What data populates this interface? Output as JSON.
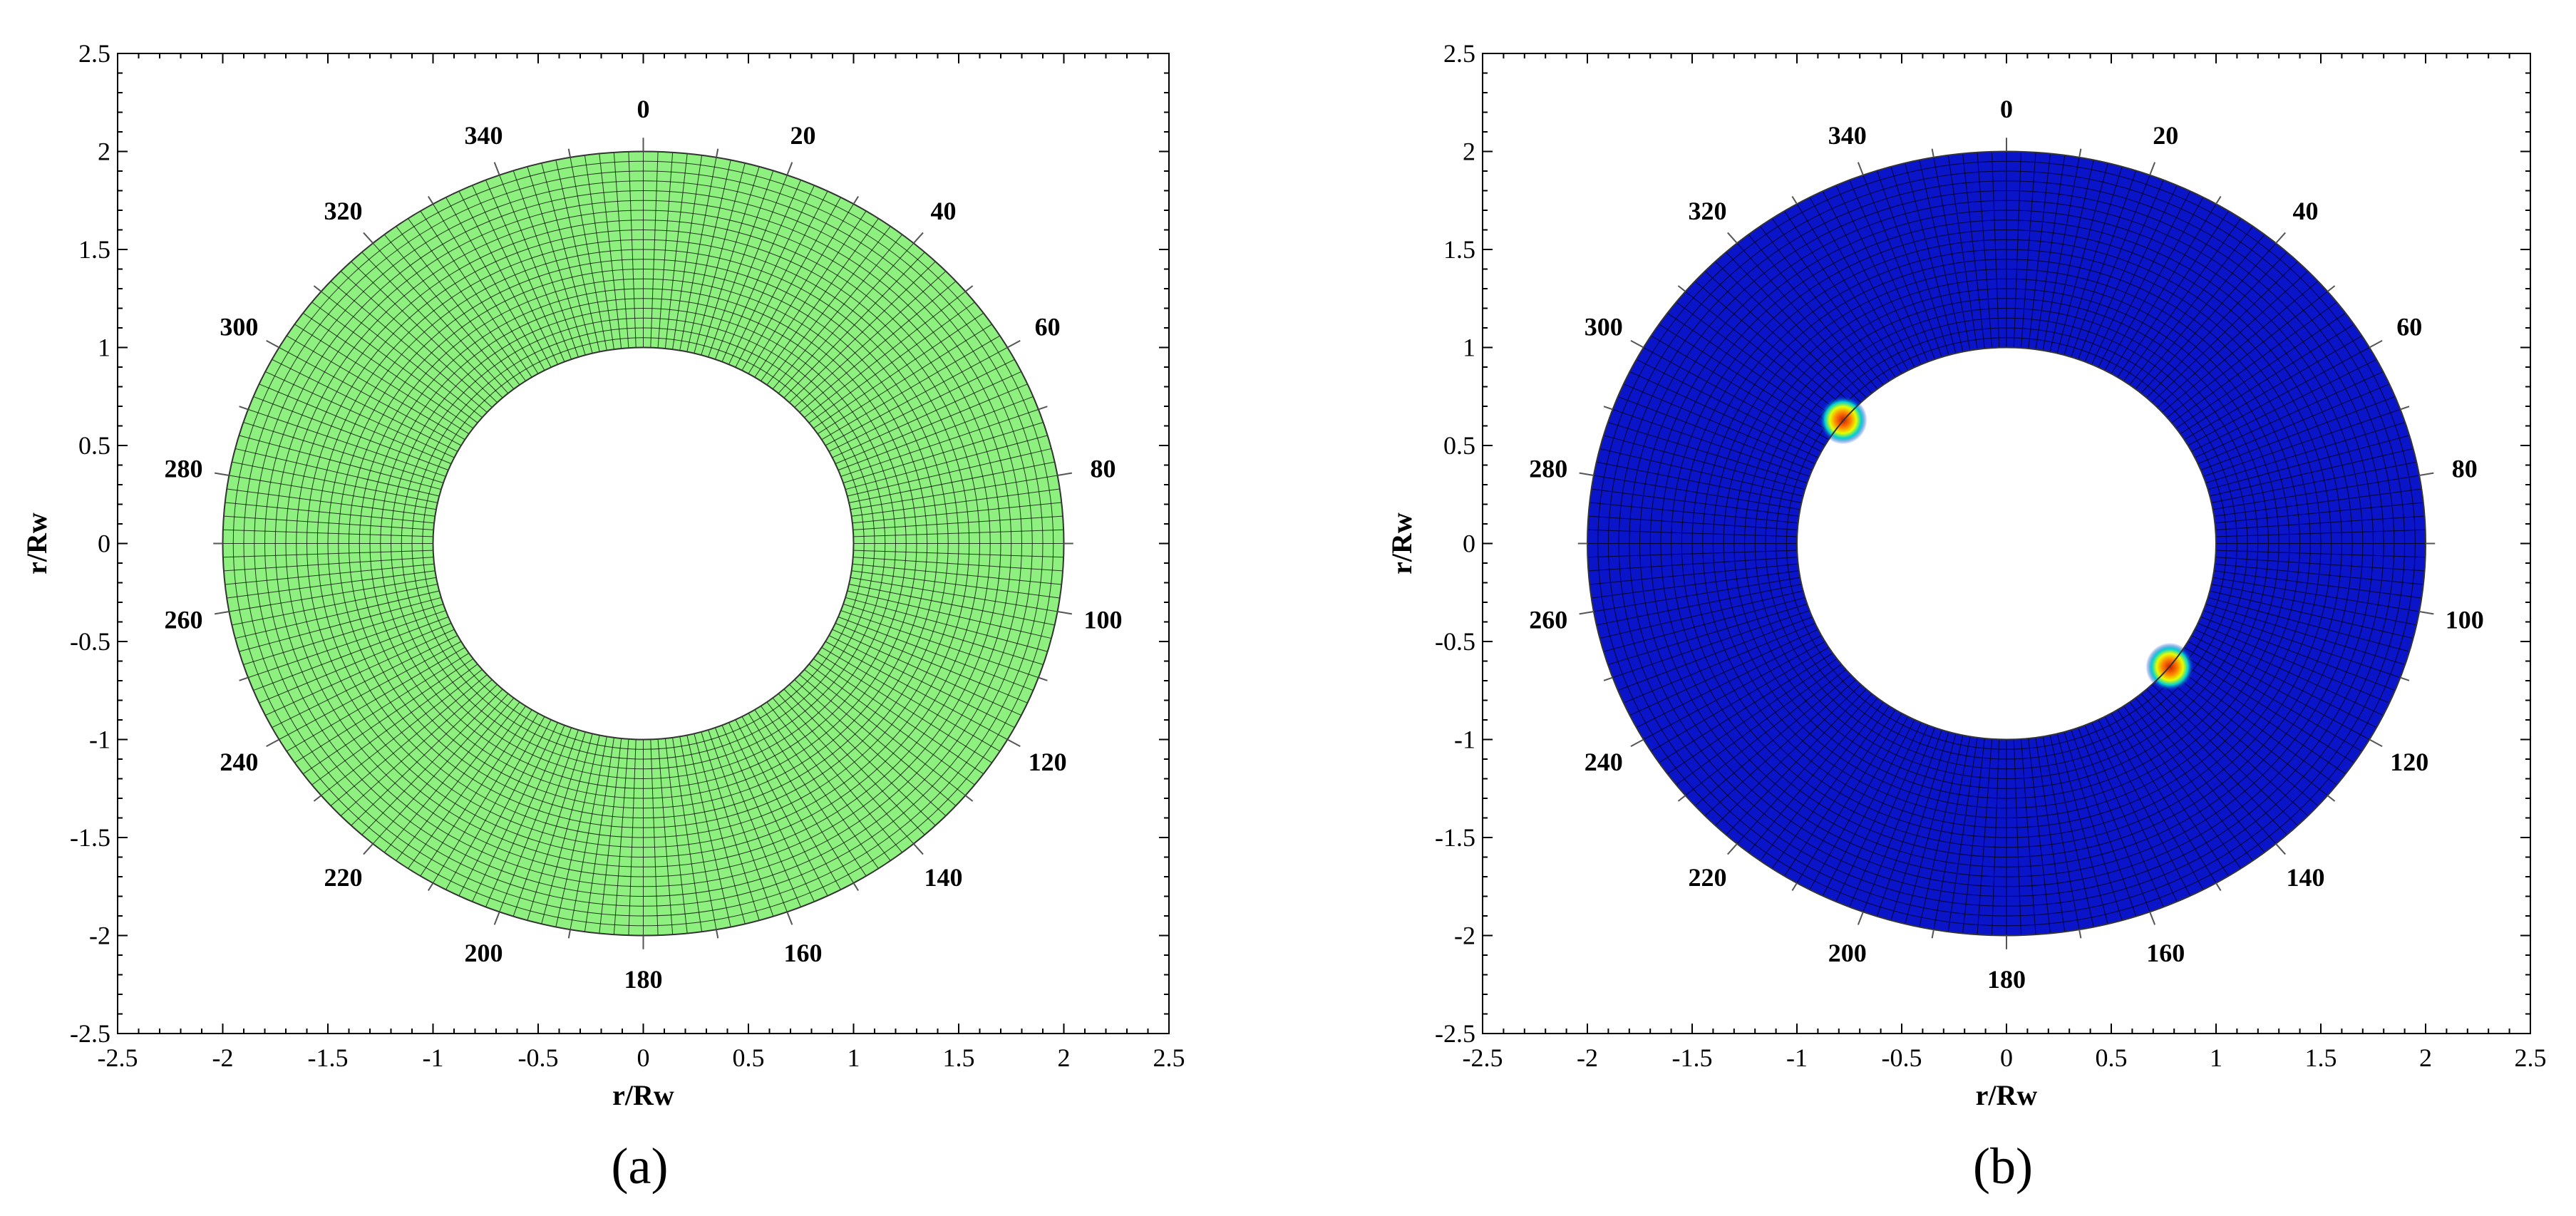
{
  "chart_data": [
    {
      "type": "polar-mesh",
      "panel_label": "(a)",
      "xlabel": "r/Rw",
      "ylabel": "r/Rw",
      "xlim": [
        -2.5,
        2.5
      ],
      "ylim": [
        -2.5,
        2.5
      ],
      "x_ticks": [
        "-2.5",
        "-2",
        "-1.5",
        "-1",
        "-0.5",
        "0",
        "0.5",
        "1",
        "1.5",
        "2",
        "2.5"
      ],
      "y_ticks": [
        "-2.5",
        "-2",
        "-1.5",
        "-1",
        "-0.5",
        "0",
        "0.5",
        "1",
        "1.5",
        "2",
        "2.5"
      ],
      "angle_labels": [
        "0",
        "20",
        "40",
        "60",
        "80",
        "100",
        "120",
        "140",
        "160",
        "180",
        "200",
        "220",
        "240",
        "260",
        "280",
        "300",
        "320",
        "340"
      ],
      "inner_radius": 1,
      "outer_radius": 2,
      "mesh_color": "#8ef07e",
      "hotspots": []
    },
    {
      "type": "polar-mesh",
      "panel_label": "(b)",
      "xlabel": "r/Rw",
      "ylabel": "r/Rw",
      "xlim": [
        -2.5,
        2.5
      ],
      "ylim": [
        -2.5,
        2.5
      ],
      "x_ticks": [
        "-2.5",
        "-2",
        "-1.5",
        "-1",
        "-0.5",
        "0",
        "0.5",
        "1",
        "1.5",
        "2",
        "2.5"
      ],
      "y_ticks": [
        "-2.5",
        "-2",
        "-1.5",
        "-1",
        "-0.5",
        "0",
        "0.5",
        "1",
        "1.5",
        "2",
        "2.5"
      ],
      "angle_labels": [
        "0",
        "20",
        "40",
        "60",
        "80",
        "100",
        "120",
        "140",
        "160",
        "180",
        "200",
        "220",
        "240",
        "260",
        "280",
        "300",
        "320",
        "340"
      ],
      "inner_radius": 1,
      "outer_radius": 2,
      "mesh_color": "#0a14c8",
      "hotspots": [
        {
          "x": -0.78,
          "y": 0.63
        },
        {
          "x": 0.78,
          "y": -0.63
        }
      ]
    }
  ]
}
